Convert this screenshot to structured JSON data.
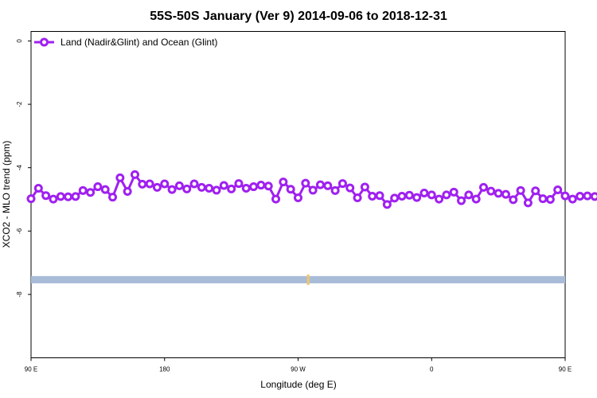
{
  "chart_data": {
    "type": "line",
    "title": "55S-50S January (Ver 9)   2014-09-06 to 2018-12-31",
    "xlabel": "Longitude (deg E)",
    "ylabel": "XCO2 - MLO trend (ppm)",
    "x_axis_deg_range": [
      90,
      450
    ],
    "ylim": [
      -10,
      0.3
    ],
    "x_ticks": [
      {
        "deg": 90,
        "label": "90 E"
      },
      {
        "deg": 180,
        "label": "180"
      },
      {
        "deg": 270,
        "label": "90 W"
      },
      {
        "deg": 360,
        "label": "0"
      },
      {
        "deg": 450,
        "label": "90 E"
      },
      {
        "deg": 540,
        "label": "180"
      }
    ],
    "y_ticks": [
      0,
      -2,
      -4,
      -6,
      -8
    ],
    "grid": false,
    "legend_position": "top-left",
    "series": [
      {
        "name": "Land (Nadir&Glint) and Ocean (Glint)",
        "color": "#a020f0",
        "x": [
          90,
          95,
          100,
          105,
          110,
          115,
          120,
          125,
          130,
          135,
          140,
          145,
          150,
          155,
          160,
          165,
          170,
          175,
          180,
          185,
          190,
          195,
          200,
          205,
          210,
          215,
          220,
          225,
          230,
          235,
          240,
          245,
          250,
          255,
          260,
          265,
          270,
          275,
          280,
          285,
          290,
          295,
          300,
          305,
          310,
          315,
          320,
          325,
          330,
          335,
          340,
          345,
          350,
          355,
          360,
          365,
          370,
          375,
          380,
          385,
          390,
          395,
          400,
          405,
          410,
          415,
          420,
          425,
          430,
          435,
          440,
          445,
          450,
          455,
          460,
          465,
          470,
          475,
          480,
          485,
          490,
          495,
          500,
          505,
          510,
          515,
          520,
          525,
          530,
          535,
          540
        ],
        "values": [
          -4.98,
          -4.65,
          -4.88,
          -4.99,
          -4.91,
          -4.92,
          -4.91,
          -4.72,
          -4.78,
          -4.6,
          -4.69,
          -4.93,
          -4.32,
          -4.75,
          -4.22,
          -4.52,
          -4.51,
          -4.62,
          -4.51,
          -4.69,
          -4.57,
          -4.67,
          -4.51,
          -4.62,
          -4.65,
          -4.71,
          -4.56,
          -4.67,
          -4.5,
          -4.65,
          -4.6,
          -4.55,
          -4.58,
          -4.99,
          -4.45,
          -4.68,
          -4.95,
          -4.49,
          -4.71,
          -4.54,
          -4.57,
          -4.72,
          -4.5,
          -4.64,
          -4.95,
          -4.61,
          -4.9,
          -4.88,
          -5.16,
          -4.96,
          -4.9,
          -4.87,
          -4.94,
          -4.8,
          -4.86,
          -4.99,
          -4.86,
          -4.77,
          -5.04,
          -4.86,
          -4.99,
          -4.62,
          -4.74,
          -4.81,
          -4.84,
          -5.01,
          -4.72,
          -5.11,
          -4.73,
          -4.98,
          -5.0,
          -4.7,
          -4.89,
          -4.99,
          -4.9,
          -4.89,
          -4.91,
          -4.77,
          -4.79,
          -4.61,
          -4.69,
          -4.94,
          -4.34,
          -4.76,
          -4.22,
          -4.52,
          -4.51,
          -4.62,
          -4.62,
          -4.69,
          -4.61
        ]
      }
    ],
    "coverage_band": {
      "y_range": [
        -7.65,
        -7.42
      ],
      "color": "#a8bcd8",
      "highlight_color": "#f5c46a",
      "highlight_x": [
        276,
        285
      ]
    }
  }
}
